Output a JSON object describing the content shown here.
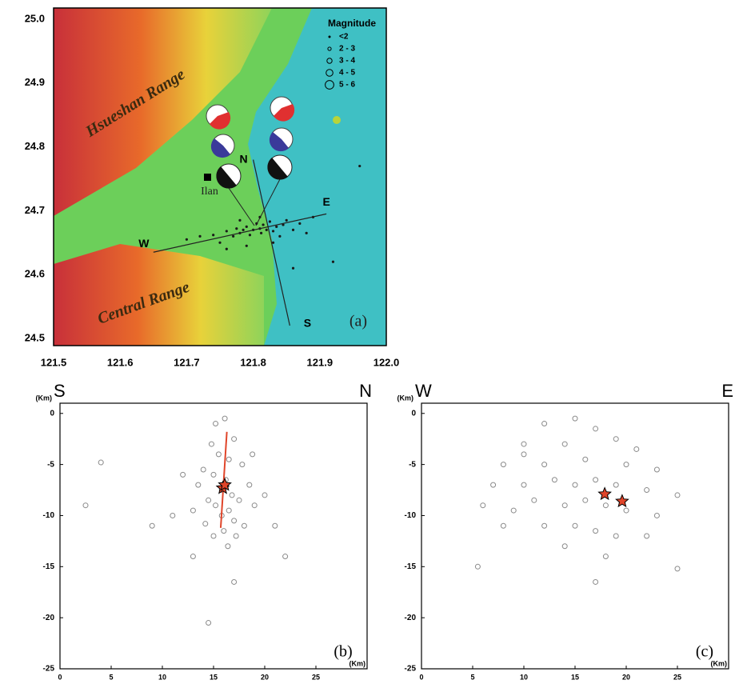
{
  "chart_data": [
    {
      "type": "map",
      "xlim": [
        121.5,
        122.0
      ],
      "xticks": [
        121.5,
        121.6,
        121.7,
        121.8,
        121.9,
        {
          "value": 122,
          "label": "122.0"
        }
      ],
      "ylim": [
        24.5,
        25.0
      ],
      "yticks": [
        24.5,
        24.6,
        24.7,
        24.8,
        24.9,
        {
          "value": 25,
          "label": "25.0"
        }
      ],
      "annotations": [
        "Hsueshan Range",
        "Central Range",
        "Ilan",
        "(a)"
      ],
      "legend": {
        "title": "Magnitude",
        "entries": [
          "<2",
          "2 - 3",
          "3 - 4",
          "4 - 5",
          "5 - 6"
        ]
      },
      "profiles": [
        {
          "start_label": "N",
          "end_label": "S",
          "x": [
            121.8,
            121.855
          ],
          "y": [
            24.78,
            24.52
          ]
        },
        {
          "start_label": "W",
          "end_label": "E",
          "x": [
            121.65,
            121.91
          ],
          "y": [
            24.635,
            24.695
          ]
        }
      ],
      "points": {
        "x": [
          121.7,
          121.72,
          121.74,
          121.75,
          121.76,
          121.77,
          121.775,
          121.78,
          121.785,
          121.79,
          121.795,
          121.8,
          121.805,
          121.81,
          121.812,
          121.815,
          121.82,
          121.825,
          121.83,
          121.835,
          121.84,
          121.845,
          121.85,
          121.86,
          121.87,
          121.88,
          121.89,
          121.76,
          121.79,
          121.83,
          121.81,
          121.78,
          121.86,
          121.96,
          121.92
        ],
        "y": [
          24.655,
          24.66,
          24.662,
          24.65,
          24.668,
          24.66,
          24.672,
          24.665,
          24.67,
          24.675,
          24.662,
          24.67,
          24.68,
          24.672,
          24.665,
          24.678,
          24.67,
          24.683,
          24.668,
          24.675,
          24.66,
          24.678,
          24.685,
          24.67,
          24.68,
          24.665,
          24.69,
          24.64,
          24.645,
          24.65,
          24.69,
          24.685,
          24.61,
          24.77,
          24.62
        ]
      },
      "point_color": "#1a1a1a",
      "sea_color": "#3fc0c4"
    },
    {
      "type": "scatter",
      "xlim": [
        0,
        30
      ],
      "xticks": [
        0,
        5,
        10,
        15,
        20,
        25
      ],
      "ylim": [
        -25,
        1
      ],
      "yticks": [
        0,
        -5,
        -10,
        -15,
        -20,
        -25
      ],
      "x_label": "(Km)",
      "y_label": "(Km)",
      "start_label": "S",
      "end_label": "N",
      "panel_label": "(b)",
      "points": {
        "x": [
          15.2,
          16.1,
          14.8,
          17,
          15.5,
          16.5,
          14,
          17.8,
          15,
          16.2,
          13.5,
          18.5,
          15.8,
          16.8,
          14.5,
          17.5,
          15.2,
          16.5,
          13,
          19,
          15.8,
          17,
          14.2,
          16,
          15,
          17.2,
          16.4,
          18,
          12,
          20,
          11,
          21,
          4,
          2.5,
          9,
          14.5,
          17,
          22,
          13,
          18.8
        ],
        "y": [
          -1,
          -0.5,
          -3,
          -2.5,
          -4,
          -4.5,
          -5.5,
          -5,
          -6,
          -6.5,
          -7,
          -7,
          -7.5,
          -8,
          -8.5,
          -8.5,
          -9,
          -9.5,
          -9.5,
          -9,
          -10,
          -10.5,
          -10.8,
          -11.5,
          -12,
          -12,
          -13,
          -11,
          -6,
          -8,
          -10,
          -11,
          -4.8,
          -9,
          -11,
          -20.5,
          -16.5,
          -14,
          -14,
          -4
        ]
      },
      "stars": {
        "x": [
          15.9,
          16.1
        ],
        "y": [
          -7.3,
          -7.0
        ]
      },
      "fault": {
        "x": [
          15.7,
          16.3
        ],
        "y": [
          -11.2,
          -1.8
        ],
        "color": "#e0452a"
      },
      "point_color": "#8a8a8a",
      "star_color": "#e0452a"
    },
    {
      "type": "scatter",
      "xlim": [
        0,
        30
      ],
      "xticks": [
        0,
        5,
        10,
        15,
        20,
        25
      ],
      "ylim": [
        -25,
        1
      ],
      "yticks": [
        0,
        -5,
        -10,
        -15,
        -20,
        -25
      ],
      "x_label": "(Km)",
      "y_label": "(Km)",
      "start_label": "W",
      "end_label": "E",
      "panel_label": "(c)",
      "points": {
        "x": [
          12,
          15,
          17,
          10,
          14,
          19,
          21,
          8,
          12,
          16,
          20,
          23,
          7,
          10,
          13,
          15,
          17,
          19,
          22,
          25,
          6,
          9,
          11,
          14,
          16,
          18,
          20,
          23,
          8,
          12,
          15,
          17,
          19,
          22,
          14,
          18,
          5.5,
          17,
          25,
          10
        ],
        "y": [
          -1,
          -0.5,
          -1.5,
          -3,
          -3,
          -2.5,
          -3.5,
          -5,
          -5,
          -4.5,
          -5,
          -5.5,
          -7,
          -7,
          -6.5,
          -7,
          -6.5,
          -7,
          -7.5,
          -8,
          -9,
          -9.5,
          -8.5,
          -9,
          -8.5,
          -9,
          -9.5,
          -10,
          -11,
          -11,
          -11,
          -11.5,
          -12,
          -12,
          -13,
          -14,
          -15,
          -16.5,
          -15.2,
          -4
        ]
      },
      "stars": {
        "x": [
          17.9,
          19.6
        ],
        "y": [
          -7.9,
          -8.6
        ]
      },
      "point_color": "#8a8a8a",
      "star_color": "#e0452a"
    }
  ]
}
